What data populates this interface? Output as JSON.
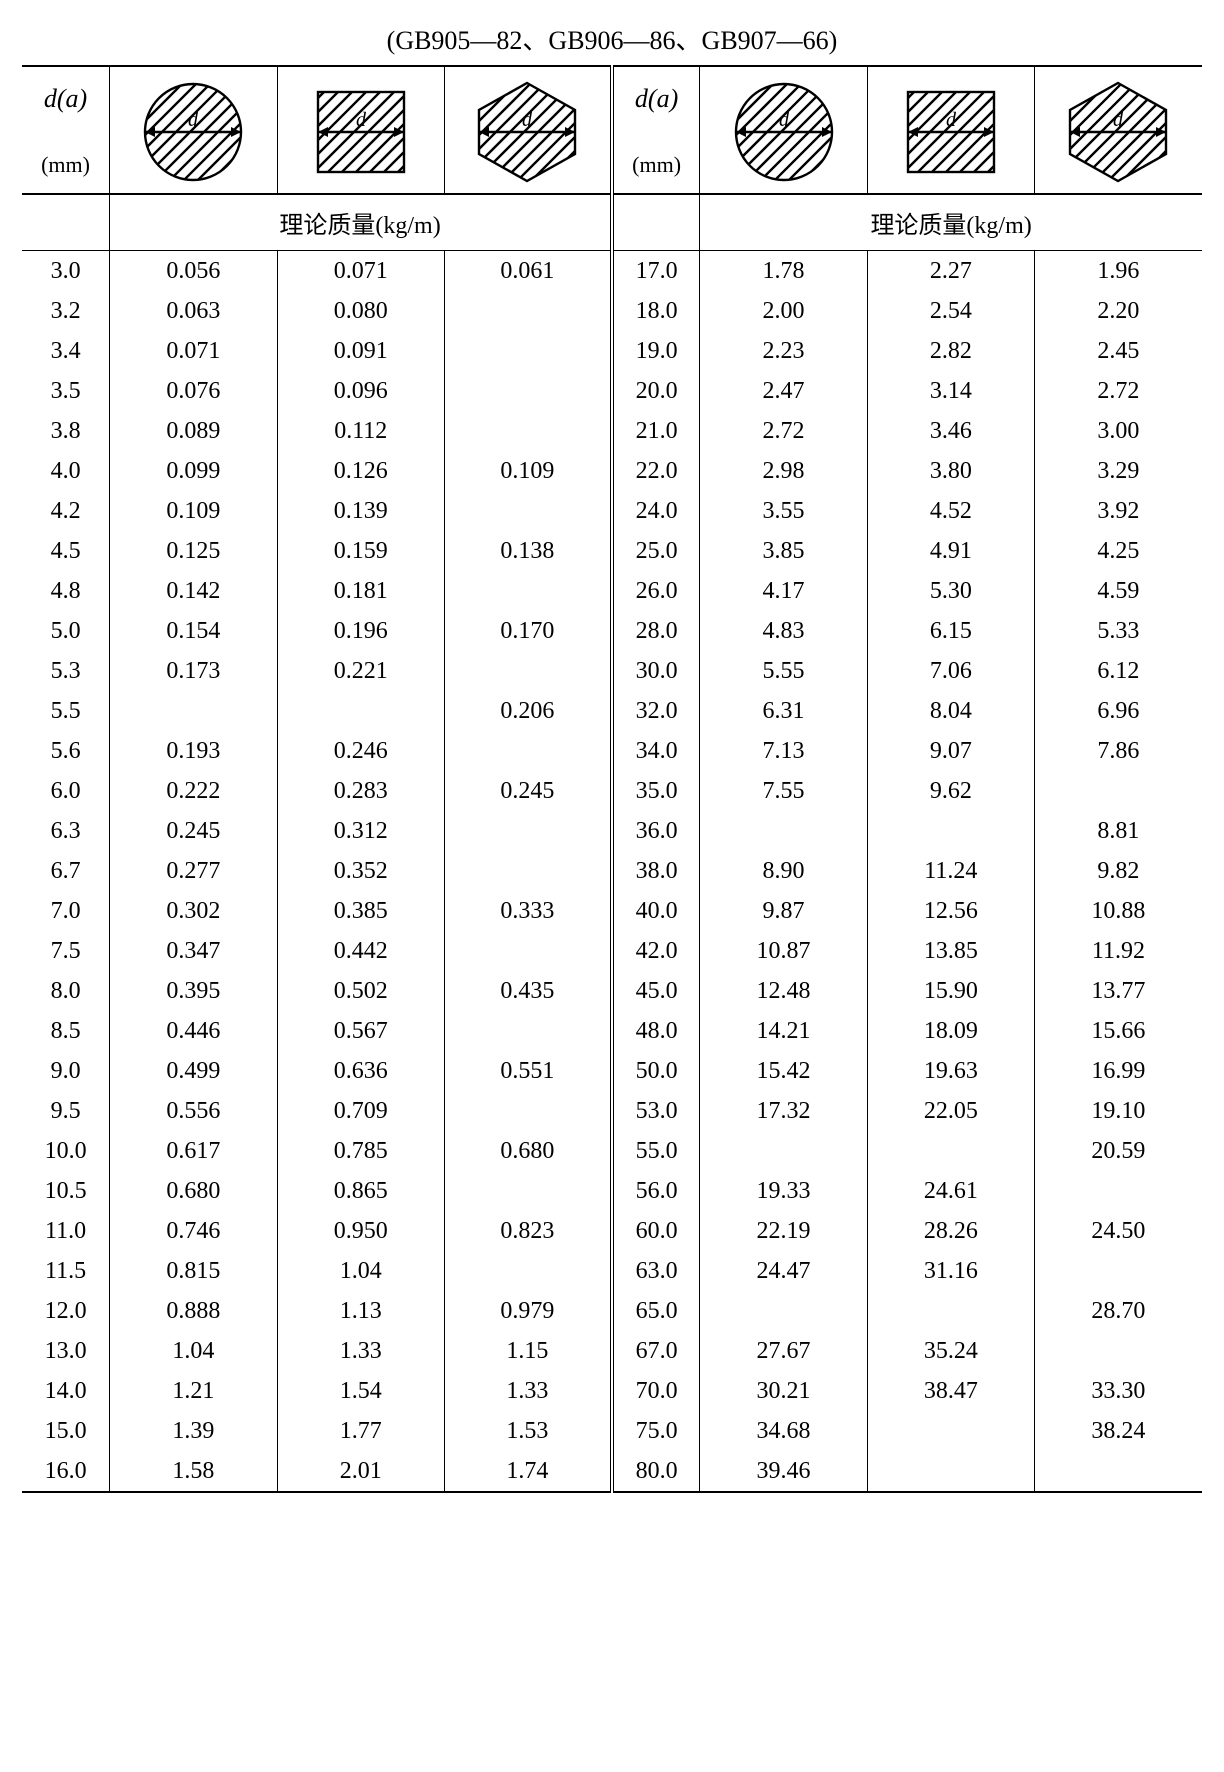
{
  "caption": "(GB905—82、GB906—86、GB907—66)",
  "header": {
    "d_label": "d(a)",
    "unit": "(mm)",
    "subheader": "理论质量(kg/m)"
  },
  "icons": {
    "stroke": "#000000",
    "hatch_stroke_width": 2.4,
    "outline_width": 2.4,
    "d_label": "d",
    "d_font_size": 20
  },
  "left_rows": [
    {
      "d": "3.0",
      "c": "0.056",
      "s": "0.071",
      "h": "0.061"
    },
    {
      "d": "3.2",
      "c": "0.063",
      "s": "0.080",
      "h": ""
    },
    {
      "d": "3.4",
      "c": "0.071",
      "s": "0.091",
      "h": ""
    },
    {
      "d": "3.5",
      "c": "0.076",
      "s": "0.096",
      "h": ""
    },
    {
      "d": "3.8",
      "c": "0.089",
      "s": "0.112",
      "h": ""
    },
    {
      "d": "4.0",
      "c": "0.099",
      "s": "0.126",
      "h": "0.109"
    },
    {
      "d": "4.2",
      "c": "0.109",
      "s": "0.139",
      "h": ""
    },
    {
      "d": "4.5",
      "c": "0.125",
      "s": "0.159",
      "h": "0.138"
    },
    {
      "d": "4.8",
      "c": "0.142",
      "s": "0.181",
      "h": ""
    },
    {
      "d": "5.0",
      "c": "0.154",
      "s": "0.196",
      "h": "0.170"
    },
    {
      "d": "5.3",
      "c": "0.173",
      "s": "0.221",
      "h": ""
    },
    {
      "d": "5.5",
      "c": "",
      "s": "",
      "h": "0.206"
    },
    {
      "d": "5.6",
      "c": "0.193",
      "s": "0.246",
      "h": ""
    },
    {
      "d": "6.0",
      "c": "0.222",
      "s": "0.283",
      "h": "0.245"
    },
    {
      "d": "6.3",
      "c": "0.245",
      "s": "0.312",
      "h": ""
    },
    {
      "d": "6.7",
      "c": "0.277",
      "s": "0.352",
      "h": ""
    },
    {
      "d": "7.0",
      "c": "0.302",
      "s": "0.385",
      "h": "0.333"
    },
    {
      "d": "7.5",
      "c": "0.347",
      "s": "0.442",
      "h": ""
    },
    {
      "d": "8.0",
      "c": "0.395",
      "s": "0.502",
      "h": "0.435"
    },
    {
      "d": "8.5",
      "c": "0.446",
      "s": "0.567",
      "h": ""
    },
    {
      "d": "9.0",
      "c": "0.499",
      "s": "0.636",
      "h": "0.551"
    },
    {
      "d": "9.5",
      "c": "0.556",
      "s": "0.709",
      "h": ""
    },
    {
      "d": "10.0",
      "c": "0.617",
      "s": "0.785",
      "h": "0.680"
    },
    {
      "d": "10.5",
      "c": "0.680",
      "s": "0.865",
      "h": ""
    },
    {
      "d": "11.0",
      "c": "0.746",
      "s": "0.950",
      "h": "0.823"
    },
    {
      "d": "11.5",
      "c": "0.815",
      "s": "1.04",
      "h": ""
    },
    {
      "d": "12.0",
      "c": "0.888",
      "s": "1.13",
      "h": "0.979"
    },
    {
      "d": "13.0",
      "c": "1.04",
      "s": "1.33",
      "h": "1.15"
    },
    {
      "d": "14.0",
      "c": "1.21",
      "s": "1.54",
      "h": "1.33"
    },
    {
      "d": "15.0",
      "c": "1.39",
      "s": "1.77",
      "h": "1.53"
    },
    {
      "d": "16.0",
      "c": "1.58",
      "s": "2.01",
      "h": "1.74"
    }
  ],
  "right_rows": [
    {
      "d": "17.0",
      "c": "1.78",
      "s": "2.27",
      "h": "1.96"
    },
    {
      "d": "18.0",
      "c": "2.00",
      "s": "2.54",
      "h": "2.20"
    },
    {
      "d": "19.0",
      "c": "2.23",
      "s": "2.82",
      "h": "2.45"
    },
    {
      "d": "20.0",
      "c": "2.47",
      "s": "3.14",
      "h": "2.72"
    },
    {
      "d": "21.0",
      "c": "2.72",
      "s": "3.46",
      "h": "3.00"
    },
    {
      "d": "22.0",
      "c": "2.98",
      "s": "3.80",
      "h": "3.29"
    },
    {
      "d": "24.0",
      "c": "3.55",
      "s": "4.52",
      "h": "3.92"
    },
    {
      "d": "25.0",
      "c": "3.85",
      "s": "4.91",
      "h": "4.25"
    },
    {
      "d": "26.0",
      "c": "4.17",
      "s": "5.30",
      "h": "4.59"
    },
    {
      "d": "28.0",
      "c": "4.83",
      "s": "6.15",
      "h": "5.33"
    },
    {
      "d": "30.0",
      "c": "5.55",
      "s": "7.06",
      "h": "6.12"
    },
    {
      "d": "32.0",
      "c": "6.31",
      "s": "8.04",
      "h": "6.96"
    },
    {
      "d": "34.0",
      "c": "7.13",
      "s": "9.07",
      "h": "7.86"
    },
    {
      "d": "35.0",
      "c": "7.55",
      "s": "9.62",
      "h": ""
    },
    {
      "d": "36.0",
      "c": "",
      "s": "",
      "h": "8.81"
    },
    {
      "d": "38.0",
      "c": "8.90",
      "s": "11.24",
      "h": "9.82"
    },
    {
      "d": "40.0",
      "c": "9.87",
      "s": "12.56",
      "h": "10.88"
    },
    {
      "d": "42.0",
      "c": "10.87",
      "s": "13.85",
      "h": "11.92"
    },
    {
      "d": "45.0",
      "c": "12.48",
      "s": "15.90",
      "h": "13.77"
    },
    {
      "d": "48.0",
      "c": "14.21",
      "s": "18.09",
      "h": "15.66"
    },
    {
      "d": "50.0",
      "c": "15.42",
      "s": "19.63",
      "h": "16.99"
    },
    {
      "d": "53.0",
      "c": "17.32",
      "s": "22.05",
      "h": "19.10"
    },
    {
      "d": "55.0",
      "c": "",
      "s": "",
      "h": "20.59"
    },
    {
      "d": "56.0",
      "c": "19.33",
      "s": "24.61",
      "h": ""
    },
    {
      "d": "60.0",
      "c": "22.19",
      "s": "28.26",
      "h": "24.50"
    },
    {
      "d": "63.0",
      "c": "24.47",
      "s": "31.16",
      "h": ""
    },
    {
      "d": "65.0",
      "c": "",
      "s": "",
      "h": "28.70"
    },
    {
      "d": "67.0",
      "c": "27.67",
      "s": "35.24",
      "h": ""
    },
    {
      "d": "70.0",
      "c": "30.21",
      "s": "38.47",
      "h": "33.30"
    },
    {
      "d": "75.0",
      "c": "34.68",
      "s": "",
      "h": "38.24"
    },
    {
      "d": "80.0",
      "c": "39.46",
      "s": "",
      "h": ""
    }
  ]
}
